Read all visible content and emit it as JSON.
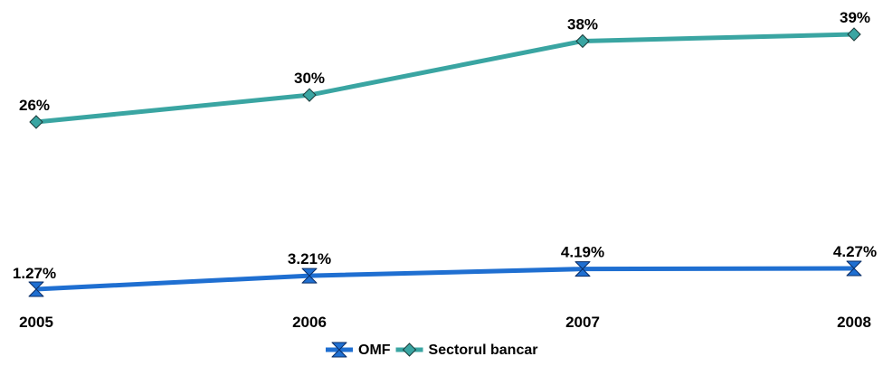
{
  "chart_data": {
    "type": "line",
    "categories": [
      "2005",
      "2006",
      "2007",
      "2008"
    ],
    "series": [
      {
        "name": "OMF",
        "values": [
          1.27,
          3.21,
          4.19,
          4.27
        ],
        "labels": [
          "1.27%",
          "3.21%",
          "4.19%",
          "4.27%"
        ],
        "color": "#1f6fd1",
        "marker": "hourglass"
      },
      {
        "name": "Sectorul bancar",
        "values": [
          26,
          30,
          38,
          39
        ],
        "labels": [
          "26%",
          "30%",
          "38%",
          "39%"
        ],
        "color": "#3aa5a2",
        "marker": "diamond"
      }
    ],
    "grid": false,
    "legend_position": "bottom"
  }
}
